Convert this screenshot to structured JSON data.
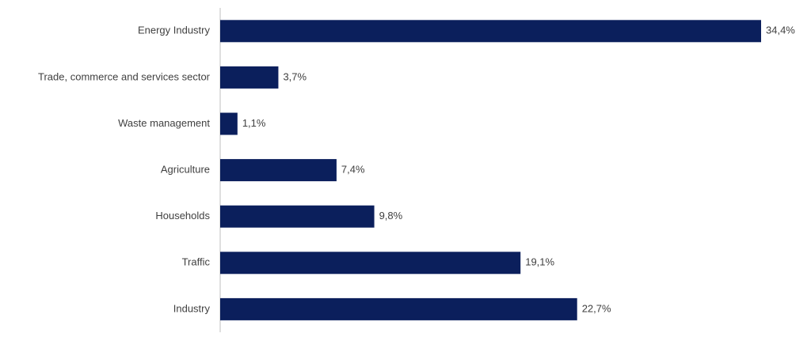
{
  "chart_data": {
    "type": "barh",
    "categories": [
      "Energy Industry",
      "Trade, commerce and services sector",
      "Waste management",
      "Agriculture",
      "Households",
      "Traffic",
      "Industry"
    ],
    "values": [
      34.4,
      3.7,
      1.1,
      7.4,
      9.8,
      19.1,
      22.7
    ],
    "value_labels": [
      "34,4%",
      "3,7%",
      "1,1%",
      "7,4%",
      "9,8%",
      "19,1%",
      "22,7%"
    ],
    "color": "#0b1f5c"
  }
}
